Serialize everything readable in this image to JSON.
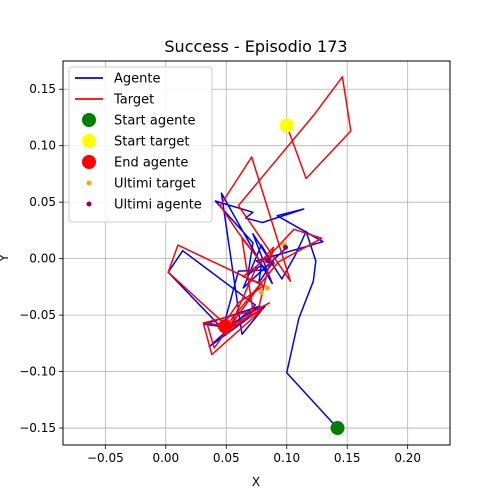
{
  "chart_data": {
    "type": "line",
    "title": "Success - Episodio 173",
    "xlabel": "X",
    "ylabel": "Y",
    "xlim": [
      -0.085,
      0.235
    ],
    "ylim": [
      -0.165,
      0.175
    ],
    "x_ticks": [
      -0.05,
      0.0,
      0.05,
      0.1,
      0.15,
      0.2
    ],
    "x_tick_labels": [
      "−0.05",
      "0.00",
      "0.05",
      "0.10",
      "0.15",
      "0.20"
    ],
    "y_ticks": [
      -0.15,
      -0.1,
      -0.05,
      0.0,
      0.05,
      0.1,
      0.15
    ],
    "y_tick_labels": [
      "−0.15",
      "−0.10",
      "−0.05",
      "0.00",
      "0.05",
      "0.10",
      "0.15"
    ],
    "grid": true,
    "legend_position": "top-left",
    "series": [
      {
        "name": "Agente",
        "kind": "line",
        "color": "#0000ff",
        "x": [
          0.142,
          0.1,
          0.11,
          0.122,
          0.124,
          0.116,
          0.107,
          0.096,
          0.072,
          0.088,
          0.046,
          0.063,
          0.082,
          0.036,
          0.074,
          0.014,
          0.002,
          0.045,
          0.032,
          0.078,
          0.047,
          0.06,
          0.084,
          0.075,
          0.13,
          0.092,
          0.114,
          0.08,
          0.066,
          0.072,
          0.041,
          0.072,
          0.068,
          0.079,
          0.077,
          0.088,
          0.079,
          0.064,
          0.083,
          0.099
        ],
        "y": [
          -0.15,
          -0.101,
          -0.053,
          -0.02,
          -0.002,
          0.024,
          0.003,
          -0.018,
          0.022,
          -0.022,
          0.058,
          -0.067,
          -0.042,
          -0.078,
          -0.041,
          0.007,
          -0.012,
          -0.06,
          -0.058,
          -0.042,
          -0.063,
          -0.011,
          -0.01,
          -0.002,
          0.015,
          0.038,
          0.044,
          0.032,
          0.036,
          0.041,
          0.051,
          0.014,
          -0.014,
          -0.006,
          -0.021,
          -0.004,
          0.012,
          -0.026,
          -0.007,
          0.009
        ]
      },
      {
        "name": "Target",
        "kind": "line",
        "color": "#ff0000",
        "x": [
          0.1,
          0.116,
          0.153,
          0.146,
          0.123,
          0.06,
          0.103,
          0.071,
          0.045,
          0.06,
          0.078,
          0.063,
          0.072,
          0.031,
          0.038,
          0.08,
          0.054,
          0.048,
          0.06,
          0.081,
          0.01,
          0.002,
          0.051,
          0.034,
          0.04,
          0.079,
          0.064,
          0.085,
          0.106,
          0.129,
          0.093,
          0.048,
          0.076,
          0.089,
          0.075,
          0.051,
          0.072,
          0.086
        ],
        "y": [
          0.118,
          0.071,
          0.113,
          0.161,
          0.128,
          0.047,
          -0.02,
          0.09,
          0.047,
          0.023,
          -0.002,
          0.018,
          -0.046,
          -0.057,
          -0.085,
          -0.045,
          -0.061,
          -0.058,
          -0.039,
          -0.024,
          0.012,
          -0.012,
          -0.06,
          -0.057,
          -0.079,
          -0.022,
          -0.016,
          0.002,
          0.026,
          0.018,
          -0.003,
          -0.062,
          -0.047,
          0.01,
          -0.007,
          -0.066,
          -0.047,
          -0.039
        ]
      }
    ],
    "markers": [
      {
        "name": "Start agente",
        "color": "#008000",
        "size": "large",
        "x": 0.142,
        "y": -0.15
      },
      {
        "name": "Start target",
        "color": "#ffff00",
        "size": "large",
        "x": 0.1,
        "y": 0.118
      },
      {
        "name": "End agente",
        "color": "#ff0000",
        "size": "large",
        "x": 0.049,
        "y": -0.06
      },
      {
        "name": "Ultimi target",
        "color": "#ffa500",
        "size": "small",
        "x": [
          0.079,
          0.084,
          0.098
        ],
        "y": [
          -0.03,
          -0.026,
          0.012
        ]
      },
      {
        "name": "Ultimi agente",
        "color": "#800080",
        "size": "small",
        "x": [
          0.099,
          0.088,
          0.084
        ],
        "y": [
          0.01,
          -0.004,
          -0.002
        ]
      }
    ]
  }
}
